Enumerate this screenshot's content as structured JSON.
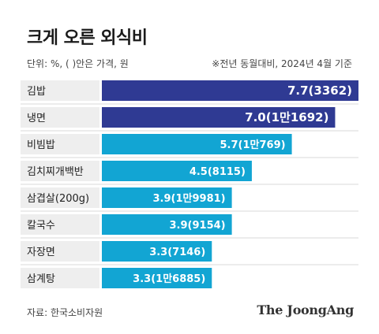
{
  "title": "크게 오른 외식비",
  "unit_note": "단위: %, ( )안은 가격, 원",
  "basis_note": "※전년 동월대비, 2024년 4월 기준",
  "source": "자료: 한국소비자원",
  "brand": "The JoongAng",
  "colors": {
    "highlight": "#2f3a93",
    "normal": "#12a5d3",
    "label_band": "#eeeeee",
    "row_divider": "#d8d8d8"
  },
  "chart_data": {
    "type": "bar",
    "orientation": "horizontal",
    "categories": [
      "김밥",
      "냉면",
      "비빔밥",
      "김치찌개백반",
      "삼겹살(200g)",
      "칼국수",
      "자장면",
      "삼계탕"
    ],
    "values": [
      7.7,
      7.0,
      5.7,
      4.5,
      3.9,
      3.9,
      3.3,
      3.3
    ],
    "price_labels": [
      "3362",
      "1만1692",
      "1만769",
      "8115",
      "1만9981",
      "9154",
      "7146",
      "1만6885"
    ],
    "data_labels": [
      "7.7(3362)",
      "7.0(1만1692)",
      "5.7(1만769)",
      "4.5(8115)",
      "3.9(1만9981)",
      "3.9(9154)",
      "3.3(7146)",
      "3.3(1만6885)"
    ],
    "highlighted": [
      "김밥",
      "냉면"
    ],
    "xlim": [
      0,
      7.7
    ],
    "grid": false,
    "title": "크게 오른 외식비"
  }
}
